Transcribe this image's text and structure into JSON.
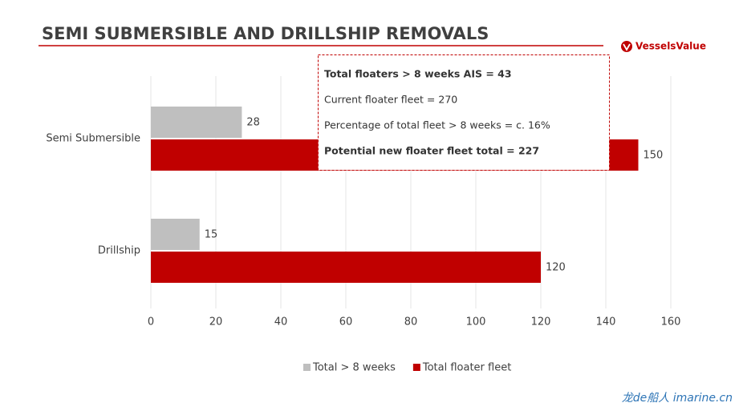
{
  "chart_data": {
    "type": "bar",
    "orientation": "horizontal",
    "title": "SEMI SUBMERSIBLE AND DRILLSHIP REMOVALS",
    "categories": [
      "Semi Submersible",
      "Drillship"
    ],
    "series": [
      {
        "name": "Total > 8 weeks",
        "color": "#bfbfbf",
        "values": [
          28,
          15
        ]
      },
      {
        "name": "Total floater fleet",
        "color": "#c00000",
        "values": [
          150,
          120
        ]
      }
    ],
    "xlim": [
      0,
      160
    ],
    "xticks": [
      0,
      20,
      40,
      60,
      80,
      100,
      120,
      140,
      160
    ],
    "grid": true,
    "legend": "bottom",
    "annotations": [
      {
        "text": "Total floaters > 8 weeks AIS = 43",
        "bold": true
      },
      {
        "text": "Current floater fleet = 270",
        "bold": false
      },
      {
        "text": "Percentage of total fleet > 8 weeks  = c. 16%",
        "bold": false
      },
      {
        "text": "Potential new floater fleet total = 227",
        "bold": true
      }
    ],
    "logo": "VesselsValue",
    "watermark": "龙de船人 imarine.cn"
  }
}
